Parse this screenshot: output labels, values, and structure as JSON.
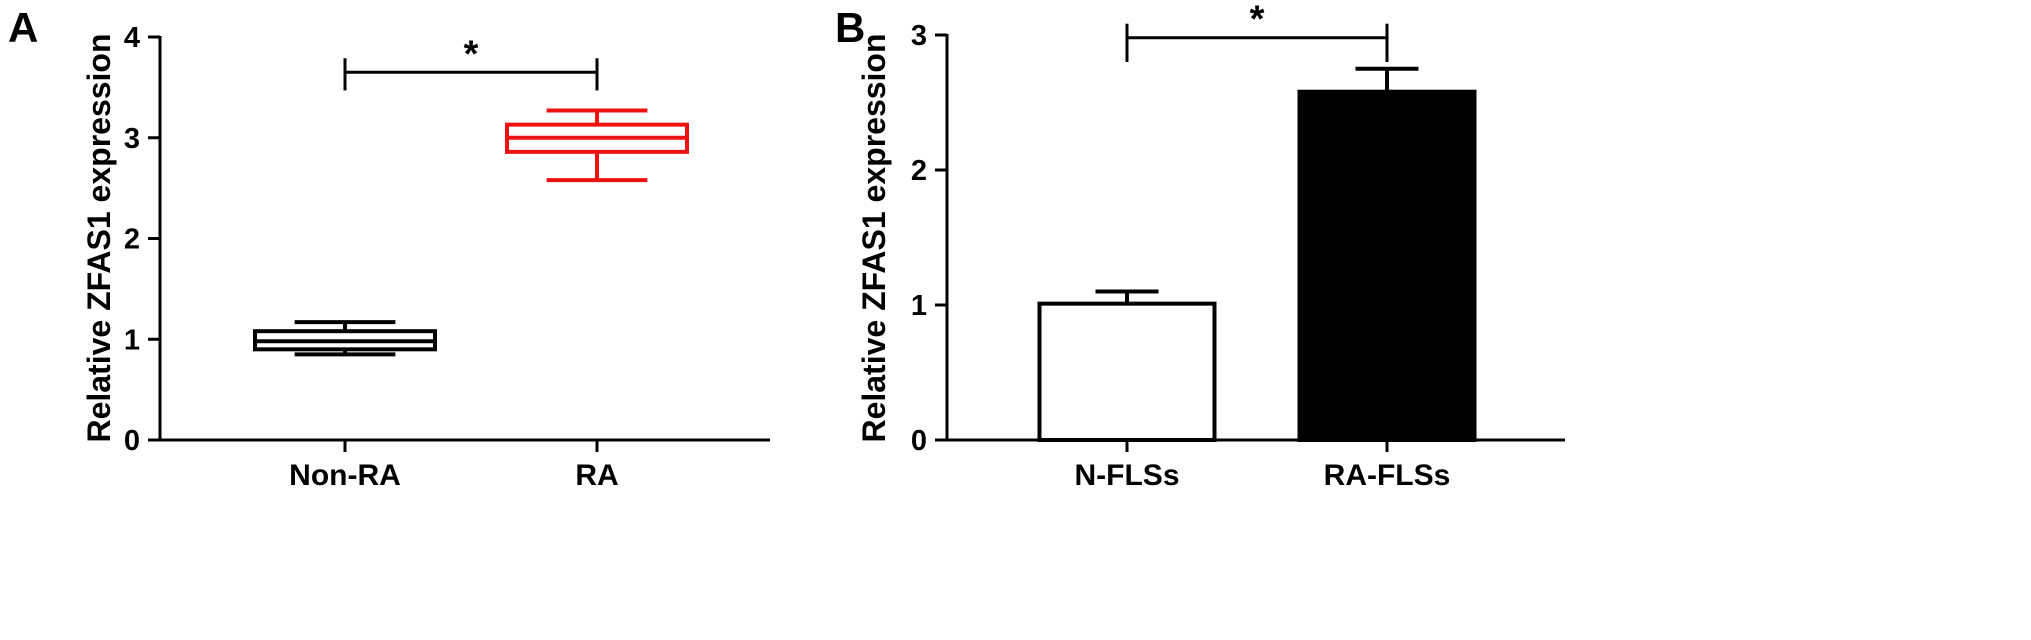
{
  "chart_data": [
    {
      "panel_label": "A",
      "type": "box",
      "title": "",
      "xlabel": "",
      "ylabel": "Relative ZFAS1 expression",
      "ylim": [
        0,
        4
      ],
      "yticks": [
        0,
        1,
        2,
        3,
        4
      ],
      "categories": [
        "Non-RA",
        "RA"
      ],
      "series": [
        {
          "category": "Non-RA",
          "min": 0.85,
          "q1": 0.9,
          "median": 0.98,
          "q3": 1.08,
          "max": 1.17,
          "color": "#000000"
        },
        {
          "category": "RA",
          "min": 2.58,
          "q1": 2.86,
          "median": 3.0,
          "q3": 3.13,
          "max": 3.27,
          "color": "#ee1111"
        }
      ],
      "significance": {
        "from": "Non-RA",
        "to": "RA",
        "y": 3.65,
        "drop_to": 3.47,
        "label": "*"
      },
      "grid": false,
      "legend": "none"
    },
    {
      "panel_label": "B",
      "type": "bar",
      "title": "",
      "xlabel": "",
      "ylabel": "Relative ZFAS1 expression",
      "ylim": [
        0,
        3
      ],
      "yticks": [
        0,
        1,
        2,
        3
      ],
      "categories": [
        "N-FLSs",
        "RA-FLSs"
      ],
      "values": [
        1.01,
        2.58
      ],
      "errors": [
        0.09,
        0.17
      ],
      "fills": [
        "#ffffff",
        "#000000"
      ],
      "significance": {
        "from": "N-FLSs",
        "to": "RA-FLSs",
        "y": 2.98,
        "drop_to": 2.8,
        "label": "*"
      },
      "grid": false,
      "legend": "none"
    }
  ]
}
